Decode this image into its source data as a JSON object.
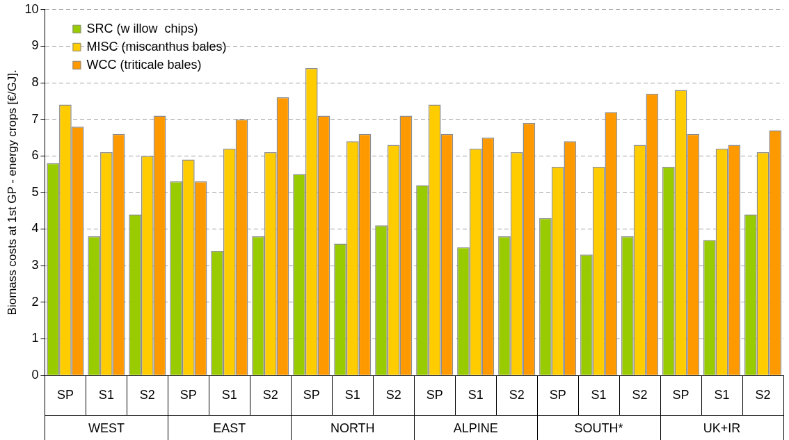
{
  "chart_data": {
    "type": "bar",
    "ylabel": "Biomass costs at 1st GP - energy crops [€/GJ].",
    "categories": [
      "SP",
      "S1",
      "S2",
      "SP",
      "S1",
      "S2",
      "SP",
      "S1",
      "S2",
      "SP",
      "S1",
      "S2",
      "SP",
      "S1",
      "S2",
      "SP",
      "S1",
      "S2"
    ],
    "annotations": [
      "WEST",
      "EAST",
      "NORTH",
      "ALPINE",
      "SOUTH*",
      "UK+IR"
    ],
    "series": [
      {
        "name": "SRC (w illow  chips)",
        "color": "#99cc00",
        "values": [
          5.8,
          3.8,
          4.4,
          5.3,
          3.4,
          3.8,
          5.5,
          3.6,
          4.1,
          5.2,
          3.5,
          3.8,
          4.3,
          3.3,
          3.8,
          5.7,
          3.7,
          4.4
        ]
      },
      {
        "name": "MISC (miscanthus bales)",
        "color": "#ffcc00",
        "values": [
          7.4,
          6.1,
          6.0,
          5.9,
          6.2,
          6.1,
          8.4,
          6.4,
          6.3,
          7.4,
          6.2,
          6.1,
          5.7,
          5.7,
          6.3,
          7.8,
          6.2,
          6.1
        ]
      },
      {
        "name": "WCC (triticale bales)",
        "color": "#ff9900",
        "values": [
          6.8,
          6.6,
          7.1,
          5.3,
          7.0,
          7.6,
          7.1,
          6.6,
          7.1,
          6.6,
          6.5,
          6.9,
          6.4,
          7.2,
          7.7,
          6.6,
          6.3,
          6.7
        ]
      }
    ],
    "ylim": [
      0,
      10
    ],
    "yticks": [
      0,
      1,
      2,
      3,
      4,
      5,
      6,
      7,
      8,
      9,
      10
    ],
    "grid": "y",
    "legend": "top left"
  }
}
